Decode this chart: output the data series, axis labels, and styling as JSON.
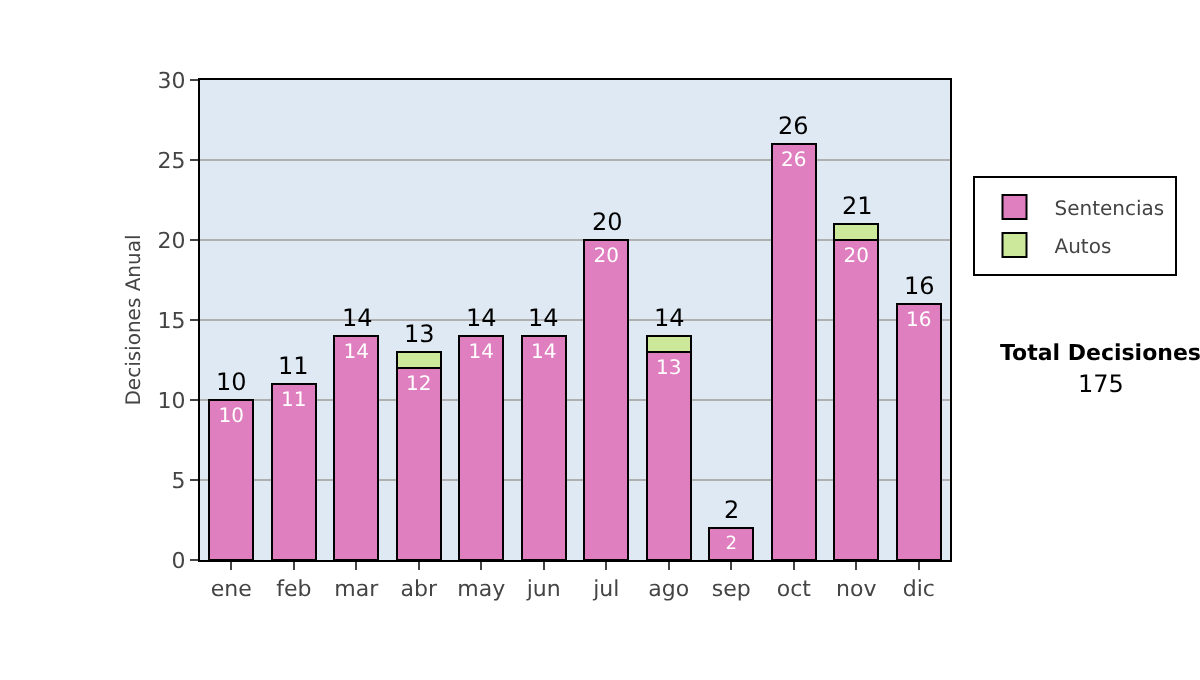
{
  "chart_data": {
    "type": "bar",
    "ylabel": "Decisiones Anual",
    "categories": [
      "ene",
      "feb",
      "mar",
      "abr",
      "may",
      "jun",
      "jul",
      "ago",
      "sep",
      "oct",
      "nov",
      "dic"
    ],
    "series": [
      {
        "name": "Sentencias",
        "color": "#df7fc0",
        "values": [
          10,
          11,
          14,
          12,
          14,
          14,
          20,
          13,
          2,
          26,
          20,
          16
        ],
        "value_labels": [
          "10",
          "11",
          "14",
          "12",
          "14",
          "14",
          "20",
          "13",
          "2",
          "26",
          "20",
          "16"
        ]
      },
      {
        "name": "Autos",
        "color": "#cce89a",
        "values": [
          null,
          null,
          null,
          1,
          null,
          null,
          null,
          1,
          null,
          null,
          1,
          null
        ]
      }
    ],
    "stacked": true,
    "totals": [
      "10",
      "11",
      "14",
      "13",
      "14",
      "14",
      "20",
      "14",
      "2",
      "26",
      "21",
      "16"
    ],
    "ylim": [
      0,
      30
    ],
    "yticks": [
      0,
      5,
      10,
      15,
      20,
      25,
      30
    ],
    "grid": "y",
    "legend": "right",
    "annotations": [
      "Total Decisiones",
      "175"
    ]
  }
}
